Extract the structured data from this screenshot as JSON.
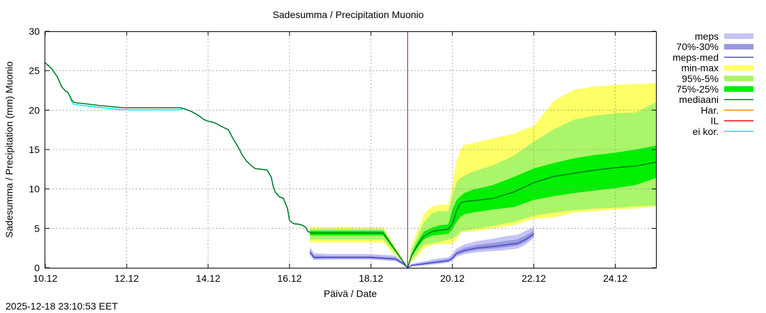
{
  "chart_data": {
    "type": "area",
    "title": "Sadesumma / Precipitation  Muonio",
    "xlabel": "Päivä / Date",
    "ylabel": "Sadesumma / Precipitation (mm)  Muonio",
    "timestamp": "2025-12-18 23:10:53 EET",
    "x_unit": "days since 10.12",
    "xlim": [
      0,
      15
    ],
    "ylim": [
      0,
      30
    ],
    "x_ticks": [
      {
        "value": 0,
        "label": "10.12"
      },
      {
        "value": 2,
        "label": "12.12"
      },
      {
        "value": 4,
        "label": "14.12"
      },
      {
        "value": 6,
        "label": "16.12"
      },
      {
        "value": 8,
        "label": "18.12"
      },
      {
        "value": 10,
        "label": "20.12"
      },
      {
        "value": 12,
        "label": "22.12"
      },
      {
        "value": 14,
        "label": "24.12"
      }
    ],
    "y_ticks": [
      0,
      5,
      10,
      15,
      20,
      25,
      30
    ],
    "grid": true,
    "legend_position": "right",
    "now_marker": 8.9,
    "colors": {
      "meps": "#c4c4f6",
      "meps_70_30": "#9898dc",
      "meps_med": "#4a4ad2",
      "minmax": "#ffff66",
      "p95_5": "#aaf56a",
      "p75_25": "#00ee00",
      "median": "#007a20",
      "har": "#ff8800",
      "il": "#ff0000",
      "eikor": "#00eeee",
      "now_line": "#a01030",
      "grid": "#999999"
    },
    "legend": [
      {
        "key": "meps",
        "label": "meps",
        "style": "band",
        "color": "#c4c4f6"
      },
      {
        "key": "meps_70_30",
        "label": "70%-30%",
        "style": "band",
        "color": "#9898dc"
      },
      {
        "key": "meps_med",
        "label": "meps-med",
        "style": "line",
        "color": "#4a4ad2"
      },
      {
        "key": "minmax",
        "label": "min-max",
        "style": "band",
        "color": "#ffff66"
      },
      {
        "key": "p95_5",
        "label": "95%-5%",
        "style": "band",
        "color": "#aaf56a"
      },
      {
        "key": "p75_25",
        "label": "75%-25%",
        "style": "band",
        "color": "#00ee00"
      },
      {
        "key": "median",
        "label": "mediaani",
        "style": "line",
        "color": "#007a20"
      },
      {
        "key": "har",
        "label": "Har.",
        "style": "line",
        "color": "#ff8800"
      },
      {
        "key": "il",
        "label": "IL",
        "style": "line",
        "color": "#ff0000"
      },
      {
        "key": "eikor",
        "label": "ei kor.",
        "style": "line",
        "color": "#00eeee"
      }
    ],
    "series": {
      "observed_median": {
        "name": "mediaani (observed)",
        "points": [
          [
            0,
            26.0
          ],
          [
            0.2,
            25.2
          ],
          [
            0.4,
            23.0
          ],
          [
            0.55,
            22.3
          ],
          [
            0.6,
            21.8
          ],
          [
            0.6,
            21.6
          ],
          [
            0.6,
            21.3
          ],
          [
            0.6,
            21.1
          ],
          [
            0.6,
            21.0
          ],
          [
            0.6,
            20.9
          ],
          [
            0.6,
            20.9
          ],
          [
            0.6,
            20.8
          ],
          [
            0.6,
            20.8
          ],
          [
            0.6,
            20.7
          ],
          [
            0.6,
            20.6
          ],
          [
            0.6,
            20.5
          ],
          [
            0.6,
            20.4
          ],
          [
            0.6,
            20.3
          ]
        ]
      }
    }
  }
}
